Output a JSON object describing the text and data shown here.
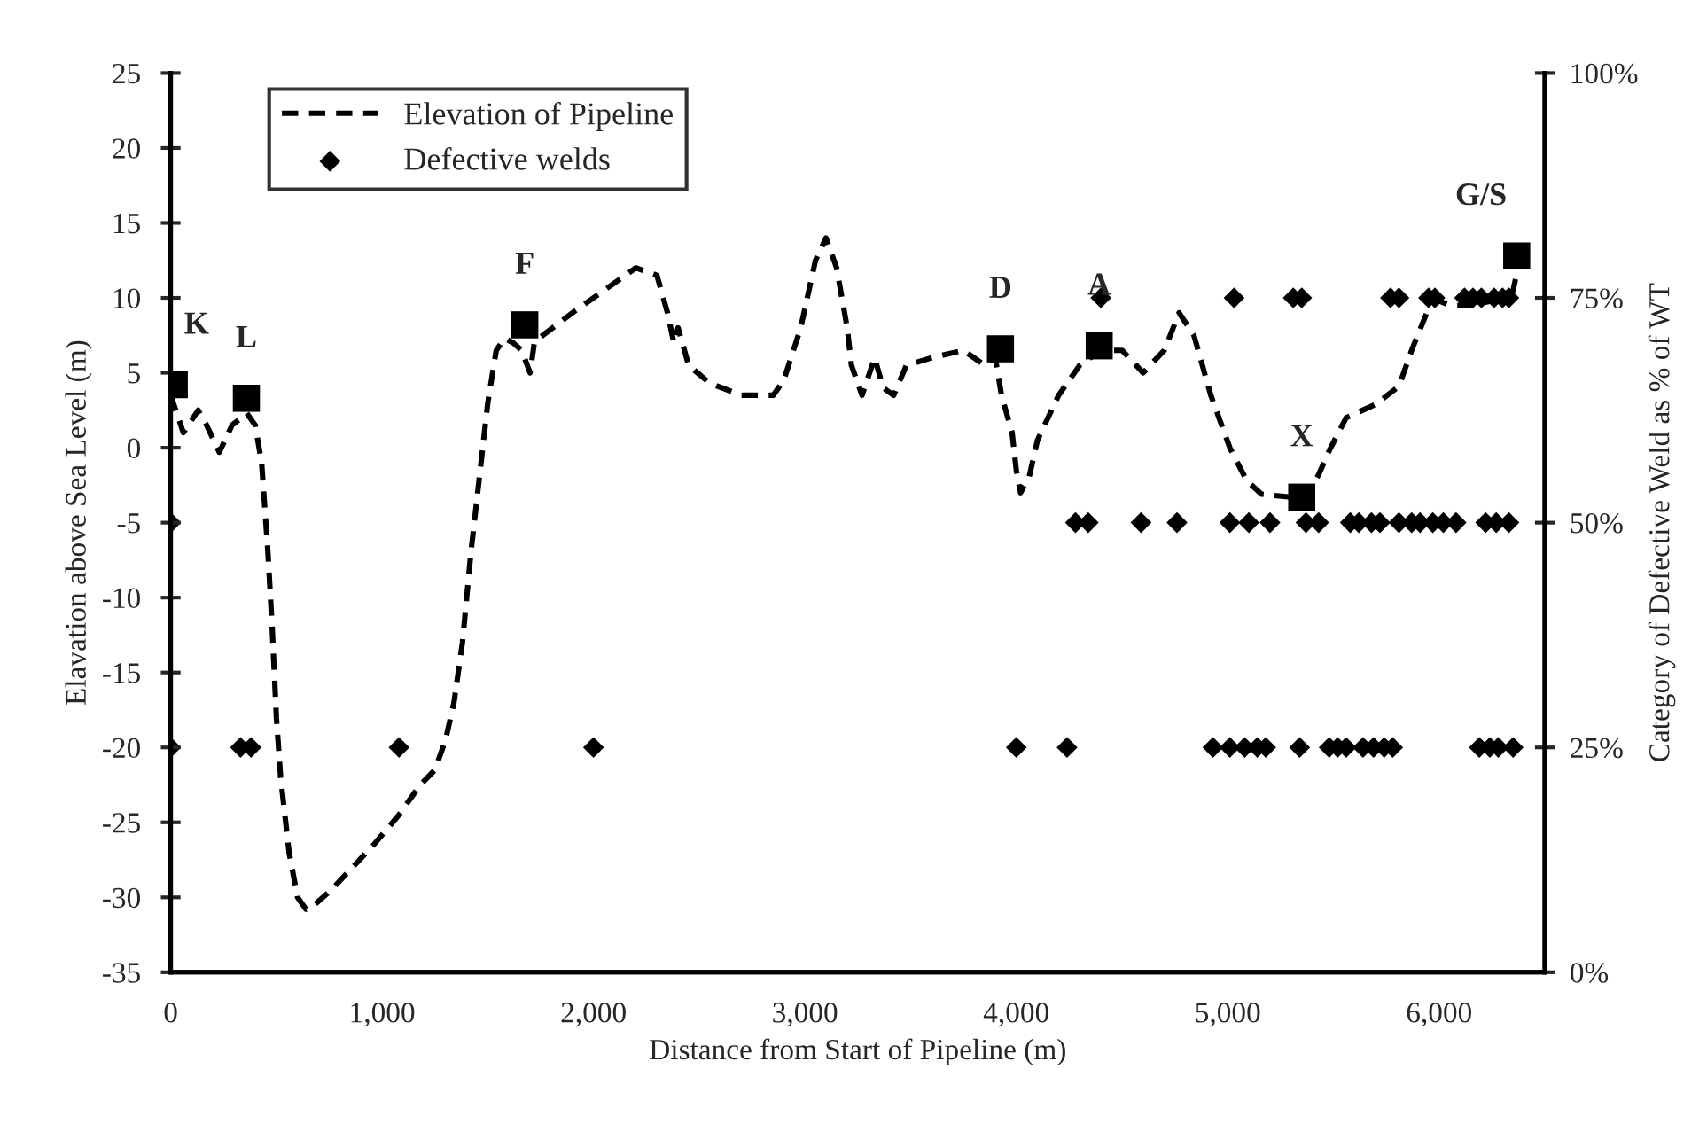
{
  "chart_data": {
    "type": "line",
    "xlabel": "Distance from Start of Pipeline (m)",
    "ylabel": "Elavation above Sea Level (m)",
    "y2label": "Category of Defective Weld as % of WT",
    "xlim": [
      0,
      6500
    ],
    "xticks": [
      0,
      {
        "value": 1000,
        "label": "1,000"
      },
      {
        "value": 2000,
        "label": "2,000"
      },
      {
        "value": 3000,
        "label": "3,000"
      },
      {
        "value": 4000,
        "label": "4,000"
      },
      {
        "value": 5000,
        "label": "5,000"
      },
      {
        "value": 6000,
        "label": "6,000"
      }
    ],
    "ylim": [
      -35,
      25
    ],
    "yticks": [
      -35,
      -30,
      -25,
      -20,
      -15,
      -10,
      -5,
      0,
      5,
      10,
      15,
      20,
      25
    ],
    "y2lim": [
      0,
      100
    ],
    "y2ticks": [
      {
        "value": 0,
        "label": "0%"
      },
      {
        "value": 25,
        "label": "25%"
      },
      {
        "value": 50,
        "label": "50%"
      },
      {
        "value": 75,
        "label": "75%"
      },
      {
        "value": 100,
        "label": "100%"
      }
    ],
    "grid": false,
    "legend": "top left",
    "series": [
      {
        "name": "Elevation of Pipeline",
        "color": "#000000",
        "line_style": "dashed",
        "marker": "none",
        "x": [
          0,
          60,
          130,
          170,
          230,
          290,
          360,
          400,
          430,
          460,
          480,
          500,
          520,
          560,
          600,
          640,
          680,
          760,
          860,
          960,
          1080,
          1180,
          1250,
          1300,
          1340,
          1380,
          1420,
          1460,
          1500,
          1540,
          1580,
          1620,
          1660,
          1700,
          1720,
          1760,
          1900,
          2050,
          2200,
          2300,
          2350,
          2380,
          2400,
          2450,
          2550,
          2700,
          2850,
          2900,
          2980,
          3050,
          3100,
          3150,
          3200,
          3220,
          3270,
          3330,
          3370,
          3420,
          3480,
          3600,
          3750,
          3850,
          3900,
          3930,
          3980,
          4000,
          4020,
          4060,
          4100,
          4200,
          4300,
          4400,
          4500,
          4600,
          4700,
          4770,
          4840,
          4920,
          5010,
          5090,
          5160,
          5300,
          5370,
          5430,
          5480,
          5560,
          5700,
          5810,
          5870,
          5950,
          6000,
          6050,
          6150,
          6250,
          6350,
          6380
        ],
        "values": [
          3.5,
          1,
          2.5,
          1.5,
          -0.3,
          1.5,
          2.3,
          1.5,
          -1,
          -7,
          -12,
          -18,
          -22,
          -27,
          -30,
          -30.8,
          -30.5,
          -29.5,
          -28,
          -26.5,
          -24.5,
          -22.5,
          -21.5,
          -19.5,
          -17,
          -13,
          -7,
          -2,
          3,
          6.5,
          7.3,
          7,
          6.5,
          5,
          7,
          7.5,
          9,
          10.5,
          12,
          11.5,
          9,
          7,
          8,
          5.5,
          4.3,
          3.5,
          3.5,
          4.5,
          8,
          12.5,
          14,
          12,
          8,
          5.5,
          3.5,
          6,
          4,
          3.5,
          5.5,
          6,
          6.5,
          5.5,
          6,
          3.5,
          1,
          -1.5,
          -3,
          -2,
          0.5,
          3.5,
          5.5,
          6.5,
          6.5,
          5,
          6.5,
          9,
          7.5,
          3.5,
          0,
          -2.2,
          -3.1,
          -3.3,
          -3.3,
          -1.8,
          -0.2,
          2,
          2.9,
          4.1,
          6.5,
          9.3,
          9.8,
          9.5,
          9.5,
          9.8,
          10.5,
          12.5
        ]
      },
      {
        "name": "Defective welds",
        "type": "scatter",
        "axis": "y2",
        "color": "#000000",
        "marker": "diamond",
        "x": [
          0,
          330,
          380,
          1080,
          2000,
          4000,
          4240,
          4930,
          5010,
          5080,
          5140,
          5180,
          5340,
          5480,
          5520,
          5560,
          5640,
          5690,
          5740,
          5780,
          6190,
          6240,
          6280,
          6350,
          0,
          4280,
          4340,
          4590,
          4760,
          5010,
          5100,
          5200,
          5370,
          5430,
          5580,
          5620,
          5680,
          5720,
          5810,
          5870,
          5910,
          5970,
          6020,
          6080,
          6220,
          6270,
          6330,
          4400,
          5030,
          5310,
          5350,
          5770,
          5810,
          5950,
          5980,
          6120,
          6160,
          6200,
          6260,
          6300,
          6330
        ],
        "values": [
          25,
          25,
          25,
          25,
          25,
          25,
          25,
          25,
          25,
          25,
          25,
          25,
          25,
          25,
          25,
          25,
          25,
          25,
          25,
          25,
          25,
          25,
          25,
          25,
          50,
          50,
          50,
          50,
          50,
          50,
          50,
          50,
          50,
          50,
          50,
          50,
          50,
          50,
          50,
          50,
          50,
          50,
          50,
          50,
          50,
          50,
          50,
          75,
          75,
          75,
          75,
          75,
          75,
          75,
          75,
          75,
          75,
          75,
          75,
          75,
          75
        ]
      },
      {
        "type": "scatter",
        "color": "#000000",
        "marker": "square",
        "x": [
          17,
          358,
          1675,
          3925,
          4392,
          5350,
          6367
        ],
        "values": [
          4.2,
          3.3,
          8.2,
          6.6,
          6.8,
          -3.3,
          12.8
        ]
      }
    ],
    "annotations": [
      {
        "text": "K",
        "x": 17,
        "y": 4.2
      },
      {
        "text": "L",
        "x": 358,
        "y": 3.3
      },
      {
        "text": "F",
        "x": 1675,
        "y": 8.2
      },
      {
        "text": "D",
        "x": 3925,
        "y": 6.6
      },
      {
        "text": "A",
        "x": 4392,
        "y": 6.8
      },
      {
        "text": "X",
        "x": 5350,
        "y": -3.3
      },
      {
        "text": "G/S",
        "x": 6367,
        "y": 12.8
      }
    ]
  }
}
